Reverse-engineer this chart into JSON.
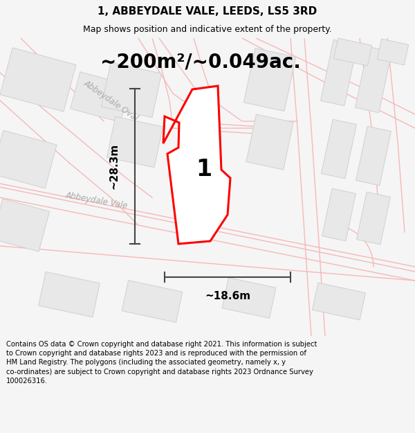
{
  "title": "1, ABBEYDALE VALE, LEEDS, LS5 3RD",
  "subtitle": "Map shows position and indicative extent of the property.",
  "area_label": "~200m²/~0.049ac.",
  "plot_number": "1",
  "width_label": "~18.6m",
  "height_label": "~28.3m",
  "footer_text": "Contains OS data © Crown copyright and database right 2021. This information is subject to Crown copyright and database rights 2023 and is reproduced with the permission of HM Land Registry. The polygons (including the associated geometry, namely x, y co-ordinates) are subject to Crown copyright and database rights 2023 Ordnance Survey 100026316.",
  "bg_color": "#f5f5f5",
  "map_bg": "#ffffff",
  "road_color": "#f5b8b8",
  "building_color": "#e8e8e8",
  "building_edge": "#d0d0d0",
  "plot_color": "#ff0000",
  "title_fontsize": 11,
  "subtitle_fontsize": 9,
  "area_fontsize": 20,
  "footer_fontsize": 7.2,
  "dim_line_color": "#444444",
  "road_label_color": "#aaaaaa"
}
